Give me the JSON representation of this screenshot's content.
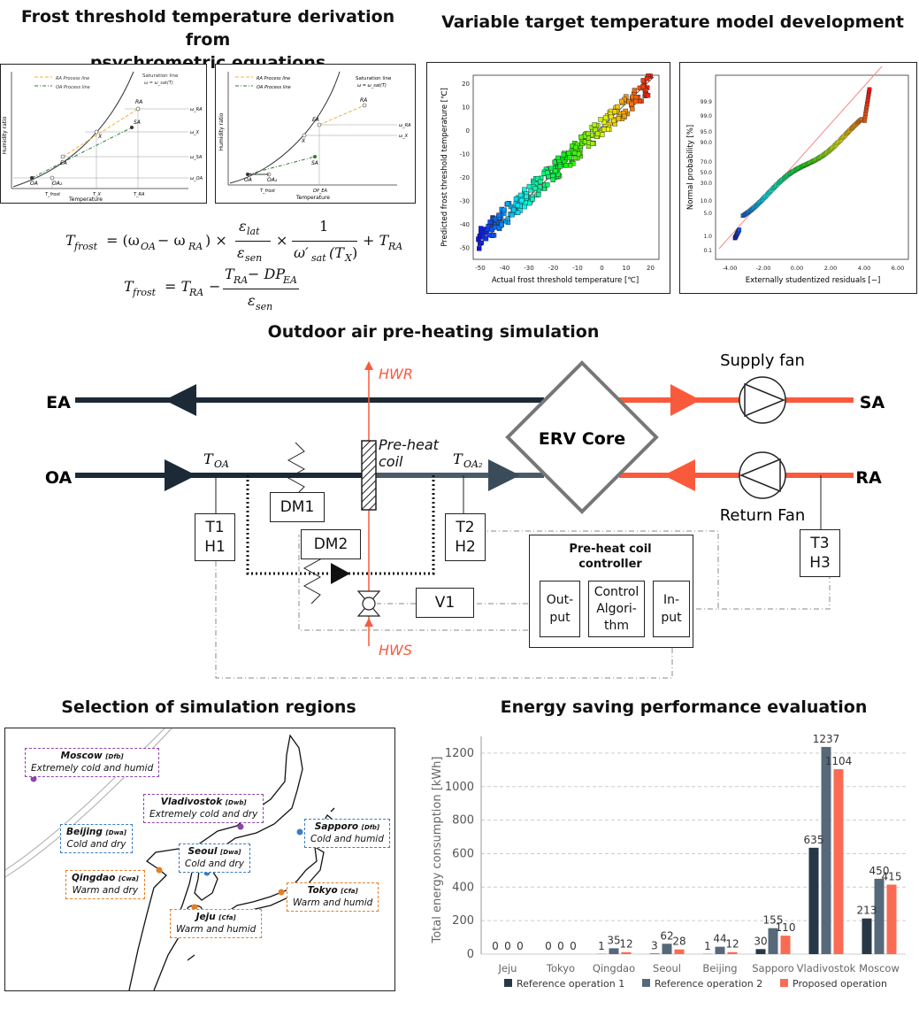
{
  "headings": {
    "frost": "Frost threshold temperature derivation from\npsychrometric equations",
    "model": "Variable target temperature model development",
    "sim": "Outdoor air pre-heating simulation",
    "regions": "Selection of simulation regions",
    "energy": "Energy saving performance evaluation"
  },
  "psychro": {
    "ylabel": "Humidity ratio",
    "xlabel": "Temperature",
    "ra_process": "RA Process line",
    "oa_process": "OA Process line",
    "sat_line": "Saturation line",
    "sat_eq": "ω = ω_sat(T)",
    "pts_left": [
      "RA",
      "SA",
      "EA",
      "X",
      "OA",
      "OA₂"
    ],
    "axis_left": [
      "T_frost",
      "T_X",
      "T_RA"
    ],
    "omega_left": [
      "ω_RA",
      "ω_X",
      "ω_SA",
      "ω_OA"
    ],
    "pts_right": [
      "RA",
      "EA",
      "X",
      "SA",
      "OA",
      "OA₂"
    ],
    "axis_right": [
      "T_frost",
      "DP_EA"
    ],
    "omega_right": [
      "ω_RA",
      "ω_X"
    ]
  },
  "equations": {
    "eq1_lhs": "T",
    "eq1_lhs_sub": "frost",
    "eq1_mid": "= (ω",
    "eq1_s1": "OA",
    "eq1_minus": " − ω",
    "eq1_s2": "RA",
    "eq1_close": ") ×",
    "eq1_num1": "ε",
    "eq1_num1_sub": "lat",
    "eq1_den1": "ε",
    "eq1_den1_sub": "sen",
    "eq1_times": "×",
    "eq1_num2": "1",
    "eq1_den2": "ω′",
    "eq1_den2_sub": "sat",
    "eq1_den2_arg": "(T",
    "eq1_den2_x": "X",
    "eq1_den2_close": ")",
    "eq1_plus": "+ T",
    "eq1_plus_sub": "RA",
    "eq2_lhs": "T",
    "eq2_lhs_sub": "frost",
    "eq2_eq": "= T",
    "eq2_eq_sub": "RA",
    "eq2_minus": "−",
    "eq2_num": "T",
    "eq2_num_sub": "RA",
    "eq2_num_rest": " − DP",
    "eq2_num_rest_sub": "EA",
    "eq2_den": "ε",
    "eq2_den_sub": "sen"
  },
  "scatter1": {
    "ylabel": "Predicted frost threshold temperature [℃]",
    "xlabel": "Actual frost threshold temperature [℃]",
    "xticks": [
      "-50",
      "-40",
      "-30",
      "-20",
      "-10",
      "0",
      "10",
      "20"
    ],
    "yticks": [
      "20",
      "10",
      "0",
      "-10",
      "-20",
      "-30",
      "-40",
      "-50"
    ]
  },
  "scatter2": {
    "ylabel": "Normal probability [%]",
    "xlabel": "Externally studentized residuals [−]",
    "xticks": [
      "-4.00",
      "-2.00",
      "0.00",
      "2.00",
      "4.00",
      "6.00"
    ],
    "yticks": [
      "99.9",
      "99.0",
      "95.0",
      "90.0",
      "70.0",
      "50.0",
      "30.0",
      "10.0",
      "5.0",
      "1.0",
      "0.1"
    ]
  },
  "diagram": {
    "ea": "EA",
    "sa": "SA",
    "oa": "OA",
    "ra": "RA",
    "hwr": "HWR",
    "hws": "HWS",
    "supply_fan": "Supply fan",
    "return_fan": "Return Fan",
    "erv": "ERV Core",
    "preheat_label": "Pre-heat\ncoil",
    "toa": "T",
    "toa_sub": "OA",
    "toa2_sub": "OA₂",
    "dm1": "DM1",
    "dm2": "DM2",
    "v1": "V1",
    "t1": "T1\nH1",
    "t2": "T2\nH2",
    "t3": "T3\nH3",
    "controller": "Pre-heat coil\ncontroller",
    "out": "Out-\nput",
    "ctrl": "Control\nAlgori-\nthm",
    "inp": "In-\nput"
  },
  "map": {
    "regions": [
      {
        "name": "Moscow",
        "code": "[Dfb]",
        "desc": "Extremely cold and humid",
        "color": "#8e44ad"
      },
      {
        "name": "Vladivostok",
        "code": "[Dwb]",
        "desc": "Extremely cold and dry",
        "color": "#8e44ad"
      },
      {
        "name": "Beijing",
        "code": "[Dwa]",
        "desc": "Cold and dry",
        "color": "#3b7dc4"
      },
      {
        "name": "Sapporo",
        "code": "[Dfb]",
        "desc": "Cold and humid",
        "color": "#3b7dc4"
      },
      {
        "name": "Seoul",
        "code": "[Dwa]",
        "desc": "Cold and dry",
        "color": "#3b7dc4"
      },
      {
        "name": "Qingdao",
        "code": "[Cwa]",
        "desc": "Warm and dry",
        "color": "#e67e22"
      },
      {
        "name": "Tokyo",
        "code": "[Cfa]",
        "desc": "Warm and humid",
        "color": "#e67e22"
      },
      {
        "name": "Jeju",
        "code": "[Cfa]",
        "desc": "Warm and humid",
        "color": "#e67e22"
      }
    ]
  },
  "chart_data": {
    "type": "bar",
    "ylabel": "Total energy consumption  [kWh]",
    "ylim": [
      0,
      1300
    ],
    "yticks": [
      0,
      200,
      400,
      600,
      800,
      1000,
      1200
    ],
    "grid": true,
    "legend_position": "bottom",
    "categories": [
      "Jeju",
      "Tokyo",
      "Qingdao",
      "Seoul",
      "Beijing",
      "Sapporo",
      "Vladivostok",
      "Moscow"
    ],
    "series": [
      {
        "name": "Reference operation 1",
        "color": "#263845",
        "values": [
          0,
          0,
          1,
          3,
          1,
          30,
          635,
          213
        ]
      },
      {
        "name": "Reference operation 2",
        "color": "#56697a",
        "values": [
          0,
          0,
          35,
          62,
          44,
          155,
          1237,
          450
        ]
      },
      {
        "name": "Proposed operation",
        "color": "#fa6b53",
        "values": [
          0,
          0,
          12,
          28,
          12,
          110,
          1104,
          415
        ]
      }
    ]
  }
}
